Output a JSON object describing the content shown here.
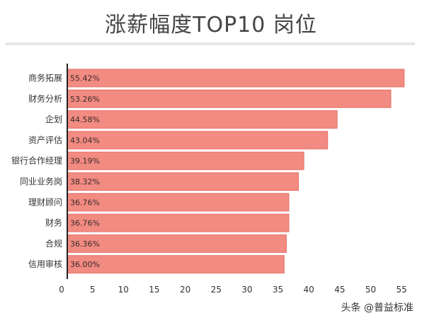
{
  "title": "涨薪幅度TOP10 岗位",
  "watermark": "头条 @普益标准",
  "chart_data": {
    "type": "bar",
    "orientation": "horizontal",
    "title": "涨薪幅度TOP10 岗位",
    "categories": [
      "商务拓展",
      "财务分析",
      "企划",
      "资产评估",
      "银行合作经理",
      "同业业务岗",
      "理财顾问",
      "财务",
      "合规",
      "信用审核"
    ],
    "values": [
      55.42,
      53.26,
      44.58,
      43.04,
      39.19,
      38.32,
      36.76,
      36.76,
      36.36,
      36.0
    ],
    "data_labels": [
      "55.42%",
      "53.26%",
      "44.58%",
      "43.04%",
      "39.19%",
      "38.32%",
      "36.76%",
      "36.76%",
      "36.36%",
      "36.00%"
    ],
    "x_ticks": [
      0,
      5,
      10,
      15,
      20,
      25,
      30,
      35,
      40,
      45,
      50,
      55
    ],
    "xlim": [
      0,
      57
    ],
    "bar_color": "#f28b82",
    "bar_border": "#e6736a",
    "grid": false,
    "legend": "none"
  }
}
